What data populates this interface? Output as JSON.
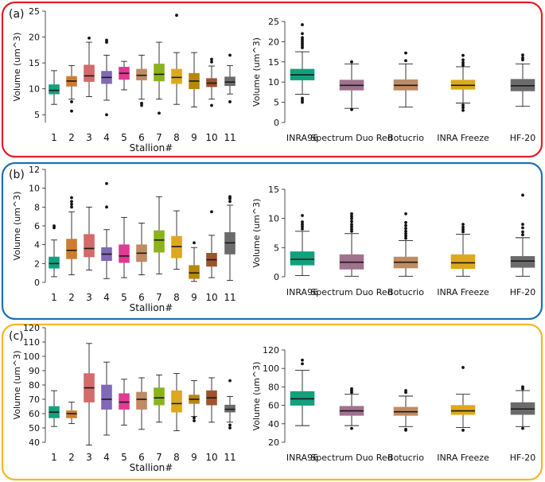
{
  "panels": [
    {
      "label": "(a)",
      "border_color": "#e31e25",
      "chart_data": [
        {
          "type": "boxplot",
          "xlabel": "Stallion#",
          "ylabel": "Volume (um^3)",
          "ylim": [
            3.5,
            25
          ],
          "yticks": [
            5,
            10,
            15,
            20,
            25
          ],
          "categories": [
            "1",
            "2",
            "3",
            "4",
            "5",
            "6",
            "7",
            "8",
            "9",
            "10",
            "11"
          ],
          "boxes": [
            {
              "q1": 9.0,
              "median": 9.7,
              "q3": 10.8,
              "lo": 7.0,
              "hi": 13.5,
              "outliers": [],
              "color": "#12a07d"
            },
            {
              "q1": 10.5,
              "median": 11.5,
              "q3": 12.4,
              "lo": 8.0,
              "hi": 14.5,
              "outliers": [
                7.5,
                5.7
              ],
              "color": "#cf7c2e"
            },
            {
              "q1": 11.4,
              "median": 12.5,
              "q3": 14.6,
              "lo": 8.5,
              "hi": 19.0,
              "outliers": [
                19.8
              ],
              "color": "#d46a6a"
            },
            {
              "q1": 11.0,
              "median": 12.2,
              "q3": 13.4,
              "lo": 7.8,
              "hi": 16.5,
              "outliers": [
                19.0,
                19.4,
                5.0
              ],
              "color": "#8268b8"
            },
            {
              "q1": 11.8,
              "median": 13.0,
              "q3": 14.2,
              "lo": 9.8,
              "hi": 15.3,
              "outliers": [],
              "color": "#e03a93"
            },
            {
              "q1": 11.7,
              "median": 12.6,
              "q3": 13.8,
              "lo": 8.0,
              "hi": 16.5,
              "outliers": [
                7.2,
                6.8
              ],
              "color": "#c08a62"
            },
            {
              "q1": 11.5,
              "median": 12.8,
              "q3": 14.8,
              "lo": 8.0,
              "hi": 19.0,
              "outliers": [
                5.3
              ],
              "color": "#8bb31b"
            },
            {
              "q1": 11.0,
              "median": 12.2,
              "q3": 13.8,
              "lo": 7.0,
              "hi": 17.0,
              "outliers": [
                24.2
              ],
              "color": "#dda81b"
            },
            {
              "q1": 10.0,
              "median": 11.5,
              "q3": 13.0,
              "lo": 6.5,
              "hi": 17.0,
              "outliers": [],
              "color": "#b8860b"
            },
            {
              "q1": 10.4,
              "median": 11.1,
              "q3": 12.0,
              "lo": 8.0,
              "hi": 14.4,
              "outliers": [
                15.2,
                15.7,
                6.8
              ],
              "color": "#a0522d"
            },
            {
              "q1": 10.6,
              "median": 11.3,
              "q3": 12.3,
              "lo": 9.0,
              "hi": 14.5,
              "outliers": [
                16.5,
                7.5
              ],
              "color": "#6b6b6b"
            }
          ]
        },
        {
          "type": "boxplot",
          "xlabel": "",
          "ylabel": "Volume (um^3)",
          "ylim": [
            0,
            25
          ],
          "yticks": [
            0,
            5,
            10,
            15,
            20,
            25
          ],
          "categories": [
            "INRA96",
            "Spectrum Duo Red",
            "Botucrio",
            "INRA Freeze",
            "HF-20"
          ],
          "boxes": [
            {
              "q1": 10.5,
              "median": 11.8,
              "q3": 13.2,
              "lo": 7.0,
              "hi": 17.5,
              "outliers": [
                18.5,
                19.0,
                19.5,
                20.0,
                20.5,
                21.0,
                22.0,
                24.2,
                6.0,
                5.5,
                5.0
              ],
              "color": "#12a07d"
            },
            {
              "q1": 8.0,
              "median": 9.2,
              "q3": 10.5,
              "lo": 3.5,
              "hi": 14.5,
              "outliers": [
                15.0,
                3.2
              ],
              "color": "#a0728e"
            },
            {
              "q1": 8.0,
              "median": 9.2,
              "q3": 10.6,
              "lo": 3.8,
              "hi": 14.5,
              "outliers": [
                15.3,
                17.2
              ],
              "color": "#c08a62"
            },
            {
              "q1": 8.2,
              "median": 9.2,
              "q3": 10.5,
              "lo": 4.8,
              "hi": 13.8,
              "outliers": [
                14.2,
                14.8,
                15.5,
                16.6,
                4.3,
                3.7,
                3.0
              ],
              "color": "#dda81b"
            },
            {
              "q1": 7.8,
              "median": 9.1,
              "q3": 10.7,
              "lo": 4.0,
              "hi": 14.5,
              "outliers": [
                15.5,
                16.0,
                16.7
              ],
              "color": "#6b6b6b"
            }
          ]
        }
      ]
    },
    {
      "label": "(b)",
      "border_color": "#1f6fb2",
      "chart_data": [
        {
          "type": "boxplot",
          "xlabel": "Stallion#",
          "ylabel": "Volume (um^3)",
          "ylim": [
            0,
            12
          ],
          "yticks": [
            0,
            2,
            4,
            6,
            8,
            10,
            12
          ],
          "categories": [
            "1",
            "2",
            "3",
            "4",
            "5",
            "6",
            "7",
            "8",
            "9",
            "10",
            "11"
          ],
          "boxes": [
            {
              "q1": 1.5,
              "median": 2.0,
              "q3": 2.7,
              "lo": 0.6,
              "hi": 4.5,
              "outliers": [
                5.8,
                6.0
              ],
              "color": "#12a07d"
            },
            {
              "q1": 2.5,
              "median": 3.4,
              "q3": 4.6,
              "lo": 0.8,
              "hi": 7.5,
              "outliers": [
                8.0,
                8.3,
                8.6,
                9.0
              ],
              "color": "#cf7c2e"
            },
            {
              "q1": 2.7,
              "median": 3.6,
              "q3": 5.1,
              "lo": 1.3,
              "hi": 8.0,
              "outliers": [],
              "color": "#d46a6a"
            },
            {
              "q1": 2.3,
              "median": 3.0,
              "q3": 3.7,
              "lo": 0.4,
              "hi": 5.6,
              "outliers": [
                8.0,
                10.5
              ],
              "color": "#8268b8"
            },
            {
              "q1": 2.1,
              "median": 2.8,
              "q3": 4.0,
              "lo": 0.5,
              "hi": 6.9,
              "outliers": [],
              "color": "#e03a93"
            },
            {
              "q1": 2.2,
              "median": 3.1,
              "q3": 4.0,
              "lo": 0.8,
              "hi": 6.3,
              "outliers": [],
              "color": "#c08a62"
            },
            {
              "q1": 3.2,
              "median": 4.5,
              "q3": 5.5,
              "lo": 0.9,
              "hi": 9.1,
              "outliers": [],
              "color": "#8bb31b"
            },
            {
              "q1": 2.6,
              "median": 3.8,
              "q3": 4.9,
              "lo": 1.4,
              "hi": 7.6,
              "outliers": [],
              "color": "#dda81b"
            },
            {
              "q1": 0.4,
              "median": 1.0,
              "q3": 1.8,
              "lo": 0.1,
              "hi": 3.7,
              "outliers": [
                4.2
              ],
              "color": "#b8860b"
            },
            {
              "q1": 1.7,
              "median": 2.4,
              "q3": 3.1,
              "lo": 0.5,
              "hi": 5.0,
              "outliers": [
                7.5
              ],
              "color": "#a0522d"
            },
            {
              "q1": 3.0,
              "median": 4.2,
              "q3": 5.3,
              "lo": 0.2,
              "hi": 8.2,
              "outliers": [
                8.6,
                8.9,
                9.1
              ],
              "color": "#6b6b6b"
            }
          ]
        },
        {
          "type": "boxplot",
          "xlabel": "",
          "ylabel": "Volume (um^3)",
          "ylim": [
            0,
            15
          ],
          "yticks": [
            0,
            5,
            10,
            15
          ],
          "categories": [
            "INRA96",
            "Spectrum Duo Red",
            "Botucrio",
            "INRA Freeze",
            "HF-20"
          ],
          "boxes": [
            {
              "q1": 2.0,
              "median": 3.0,
              "q3": 4.3,
              "lo": 0.2,
              "hi": 7.8,
              "outliers": [
                8.2,
                8.6,
                9.0,
                9.4,
                10.5
              ],
              "color": "#12a07d"
            },
            {
              "q1": 1.3,
              "median": 2.5,
              "q3": 3.8,
              "lo": 0.1,
              "hi": 7.4,
              "outliers": [
                7.8,
                8.2,
                8.6,
                9.0,
                9.5,
                10.0,
                10.4,
                10.8
              ],
              "color": "#a0728e"
            },
            {
              "q1": 1.5,
              "median": 2.5,
              "q3": 3.4,
              "lo": 0.1,
              "hi": 6.2,
              "outliers": [
                6.6,
                7.0,
                7.4,
                7.8,
                8.3,
                8.8,
                9.3,
                10.8
              ],
              "color": "#c08a62"
            },
            {
              "q1": 1.4,
              "median": 2.4,
              "q3": 3.8,
              "lo": 0.1,
              "hi": 7.3,
              "outliers": [
                7.7,
                8.1,
                8.5,
                9.0
              ],
              "color": "#dda81b"
            },
            {
              "q1": 1.6,
              "median": 2.7,
              "q3": 3.5,
              "lo": 0.1,
              "hi": 6.7,
              "outliers": [
                7.2,
                7.7,
                8.4,
                9.0,
                14.0
              ],
              "color": "#6b6b6b"
            }
          ]
        }
      ]
    },
    {
      "label": "(c)",
      "border_color": "#f2b824",
      "chart_data": [
        {
          "type": "boxplot",
          "xlabel": "Stallion#",
          "ylabel": "Volume (um^3)",
          "ylim": [
            40,
            120
          ],
          "yticks": [
            40,
            50,
            60,
            70,
            80,
            90,
            100,
            110,
            120
          ],
          "categories": [
            "1",
            "2",
            "3",
            "4",
            "5",
            "6",
            "7",
            "8",
            "9",
            "10",
            "11"
          ],
          "boxes": [
            {
              "q1": 57,
              "median": 61,
              "q3": 65,
              "lo": 51,
              "hi": 76,
              "outliers": [],
              "color": "#12a07d"
            },
            {
              "q1": 57,
              "median": 60,
              "q3": 62,
              "lo": 53,
              "hi": 68,
              "outliers": [],
              "color": "#cf7c2e"
            },
            {
              "q1": 68,
              "median": 78,
              "q3": 88,
              "lo": 38,
              "hi": 109,
              "outliers": [],
              "color": "#d46a6a"
            },
            {
              "q1": 63,
              "median": 70,
              "q3": 80,
              "lo": 45,
              "hi": 96,
              "outliers": [],
              "color": "#8268b8"
            },
            {
              "q1": 63,
              "median": 68,
              "q3": 74,
              "lo": 52,
              "hi": 84,
              "outliers": [],
              "color": "#e03a93"
            },
            {
              "q1": 63,
              "median": 70,
              "q3": 75,
              "lo": 49,
              "hi": 85,
              "outliers": [],
              "color": "#c08a62"
            },
            {
              "q1": 66,
              "median": 71,
              "q3": 78,
              "lo": 54,
              "hi": 87,
              "outliers": [],
              "color": "#8bb31b"
            },
            {
              "q1": 61,
              "median": 67,
              "q3": 76,
              "lo": 48,
              "hi": 88,
              "outliers": [],
              "color": "#dda81b"
            },
            {
              "q1": 67,
              "median": 70,
              "q3": 73,
              "lo": 58,
              "hi": 83,
              "outliers": [
                57,
                55
              ],
              "color": "#b8860b"
            },
            {
              "q1": 66,
              "median": 71,
              "q3": 76,
              "lo": 54,
              "hi": 85,
              "outliers": [],
              "color": "#a0522d"
            },
            {
              "q1": 61,
              "median": 63,
              "q3": 66,
              "lo": 54,
              "hi": 72,
              "outliers": [
                83,
                52,
                50
              ],
              "color": "#6b6b6b"
            }
          ]
        },
        {
          "type": "boxplot",
          "xlabel": "",
          "ylabel": "Volume (um^3)",
          "ylim": [
            20,
            120
          ],
          "yticks": [
            20,
            40,
            60,
            80,
            100,
            120
          ],
          "categories": [
            "INRA96",
            "Spectrum Duo Red",
            "Botucrio",
            "INRA Freeze",
            "HF-20"
          ],
          "boxes": [
            {
              "q1": 60,
              "median": 67,
              "q3": 75,
              "lo": 38,
              "hi": 98,
              "outliers": [
                105,
                109
              ],
              "color": "#12a07d"
            },
            {
              "q1": 49,
              "median": 54,
              "q3": 59,
              "lo": 38,
              "hi": 72,
              "outliers": [
                74,
                76,
                78,
                35
              ],
              "color": "#a0728e"
            },
            {
              "q1": 49,
              "median": 53,
              "q3": 58,
              "lo": 37,
              "hi": 70,
              "outliers": [
                74,
                76,
                34,
                33
              ],
              "color": "#c08a62"
            },
            {
              "q1": 50,
              "median": 54,
              "q3": 60,
              "lo": 36,
              "hi": 72,
              "outliers": [
                101,
                33
              ],
              "color": "#dda81b"
            },
            {
              "q1": 50,
              "median": 56,
              "q3": 63,
              "lo": 37,
              "hi": 76,
              "outliers": [
                78,
                80,
                35
              ],
              "color": "#6b6b6b"
            }
          ]
        }
      ]
    }
  ]
}
